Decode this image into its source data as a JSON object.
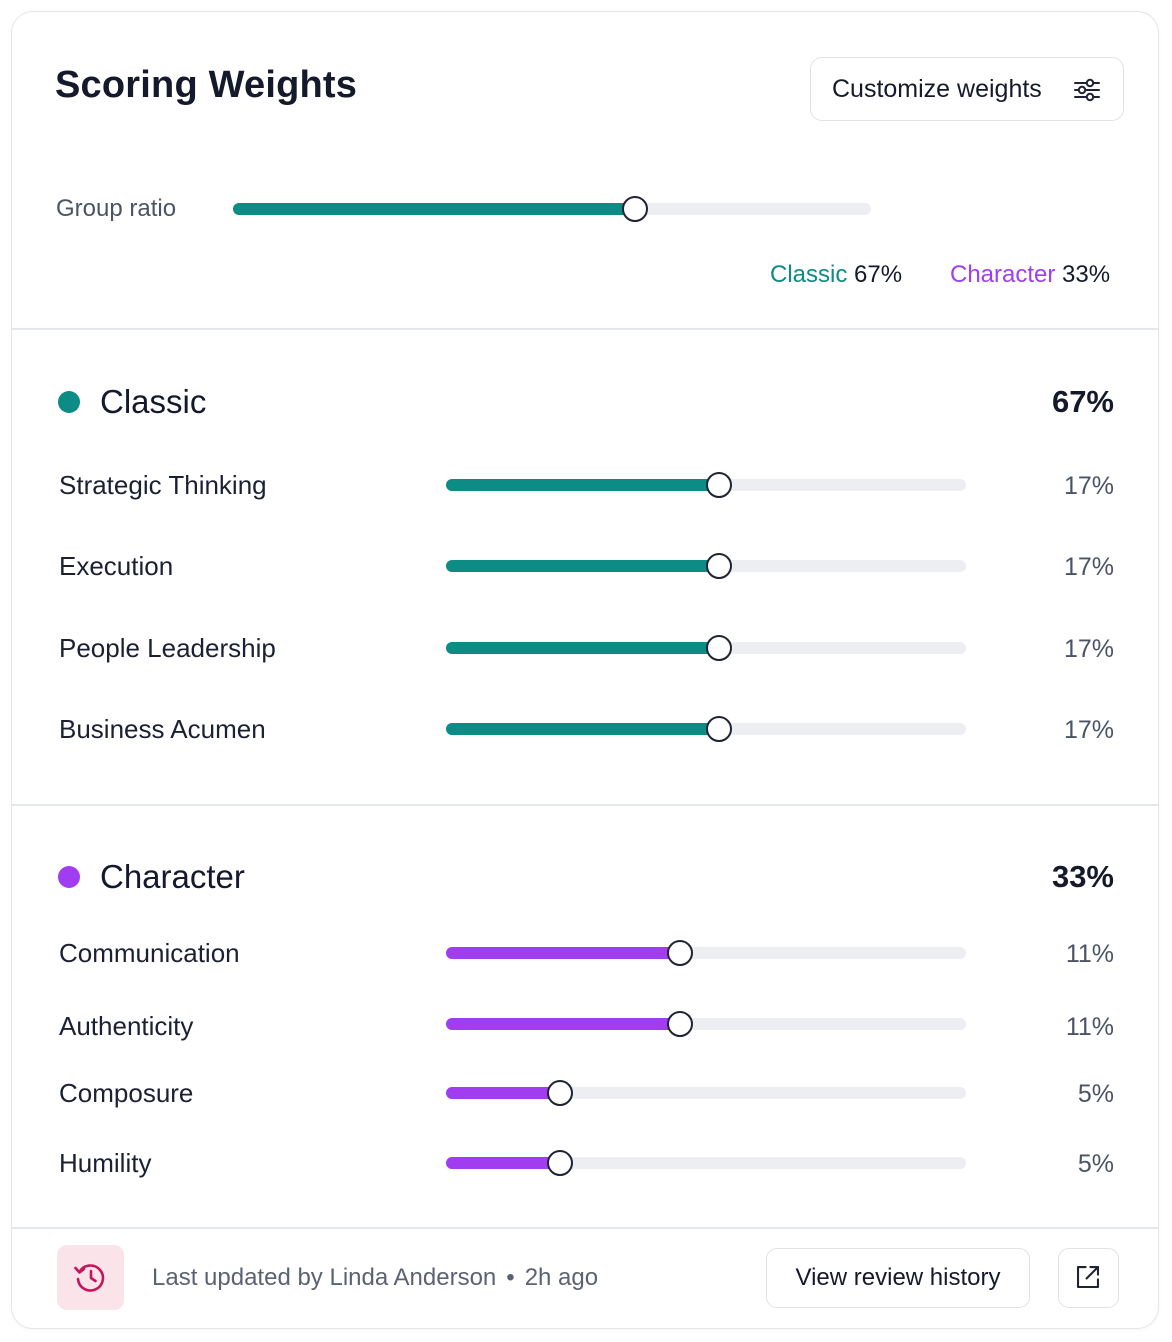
{
  "header": {
    "title": "Scoring Weights",
    "customize_label": "Customize weights",
    "customize_icon": "sliders-icon"
  },
  "ratio": {
    "label": "Group ratio",
    "value": 0.63,
    "classic_label": "Classic",
    "classic_pct": "67%",
    "character_label": "Character",
    "character_pct": "33%"
  },
  "colors": {
    "classic": "#0c8c84",
    "character": "#a13df0"
  },
  "groups": [
    {
      "name": "Classic",
      "pct": "67%",
      "color": "#0c8c84",
      "metrics": [
        {
          "label": "Strategic Thinking",
          "pct": "17%",
          "value": 0.525
        },
        {
          "label": "Execution",
          "pct": "17%",
          "value": 0.525
        },
        {
          "label": "People Leadership",
          "pct": "17%",
          "value": 0.525
        },
        {
          "label": "Business Acumen",
          "pct": "17%",
          "value": 0.525
        }
      ]
    },
    {
      "name": "Character",
      "pct": "33%",
      "color": "#a13df0",
      "metrics": [
        {
          "label": "Communication",
          "pct": "11%",
          "value": 0.45
        },
        {
          "label": "Authenticity",
          "pct": "11%",
          "value": 0.45
        },
        {
          "label": "Composure",
          "pct": "5%",
          "value": 0.22
        },
        {
          "label": "Humility",
          "pct": "5%",
          "value": 0.22
        }
      ]
    }
  ],
  "footer": {
    "history_icon": "history-icon",
    "updated_text": "Last updated by Linda Anderson",
    "separator": "•",
    "time_ago": "2h ago",
    "review_label": "View review history",
    "external_icon": "external-link-icon"
  }
}
